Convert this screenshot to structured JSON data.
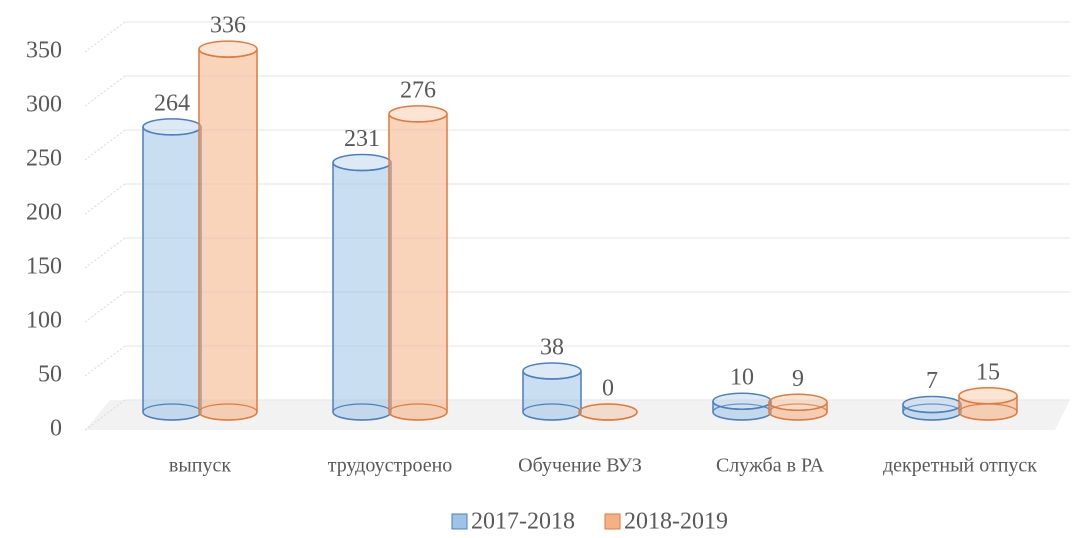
{
  "chart_data": {
    "type": "bar",
    "categories": [
      "выпуск",
      "трудоустроено",
      "Обучение ВУЗ",
      "Служба в РА",
      "декретный отпуск"
    ],
    "series": [
      {
        "name": "2017-2018",
        "color": "#9dc3e6",
        "values": [
          264,
          231,
          38,
          10,
          7
        ]
      },
      {
        "name": "2018-2019",
        "color": "#f4b183",
        "values": [
          336,
          276,
          0,
          9,
          15
        ]
      }
    ],
    "ylim": [
      0,
      350
    ],
    "yticks": [
      0,
      50,
      100,
      150,
      200,
      250,
      300,
      350
    ],
    "grid": true,
    "legend": "bottom"
  }
}
